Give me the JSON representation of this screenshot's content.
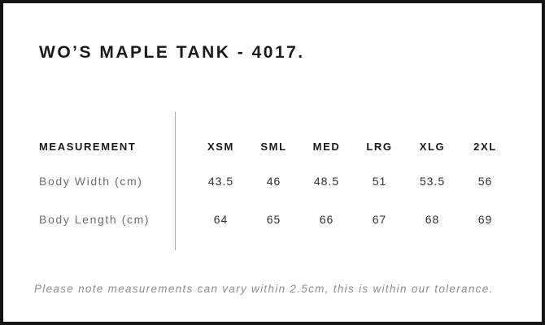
{
  "title": "WO’S MAPLE TANK - 4017.",
  "note": "Please note measurements can vary within 2.5cm, this is within our tolerance.",
  "chart_data": {
    "type": "table",
    "title": "WO’S MAPLE TANK - 4017.",
    "columns": [
      "MEASUREMENT",
      "XSM",
      "SML",
      "MED",
      "LRG",
      "XLG",
      "2XL"
    ],
    "rows": [
      {
        "label": "Body Width (cm)",
        "values": [
          "43.5",
          "46",
          "48.5",
          "51",
          "53.5",
          "56"
        ]
      },
      {
        "label": "Body Length (cm)",
        "values": [
          "64",
          "65",
          "66",
          "67",
          "68",
          "69"
        ]
      }
    ],
    "units": "cm",
    "layout": "size-chart with left label column separated from value columns by a vertical gray rule"
  },
  "colors": {
    "heading": "#1a1a1a",
    "row_label": "#6e6e6e",
    "value": "#2e2e2e",
    "note": "#8d8d8d",
    "divider": "#a9a9a9",
    "border": "#141414",
    "background": "#ffffff"
  }
}
